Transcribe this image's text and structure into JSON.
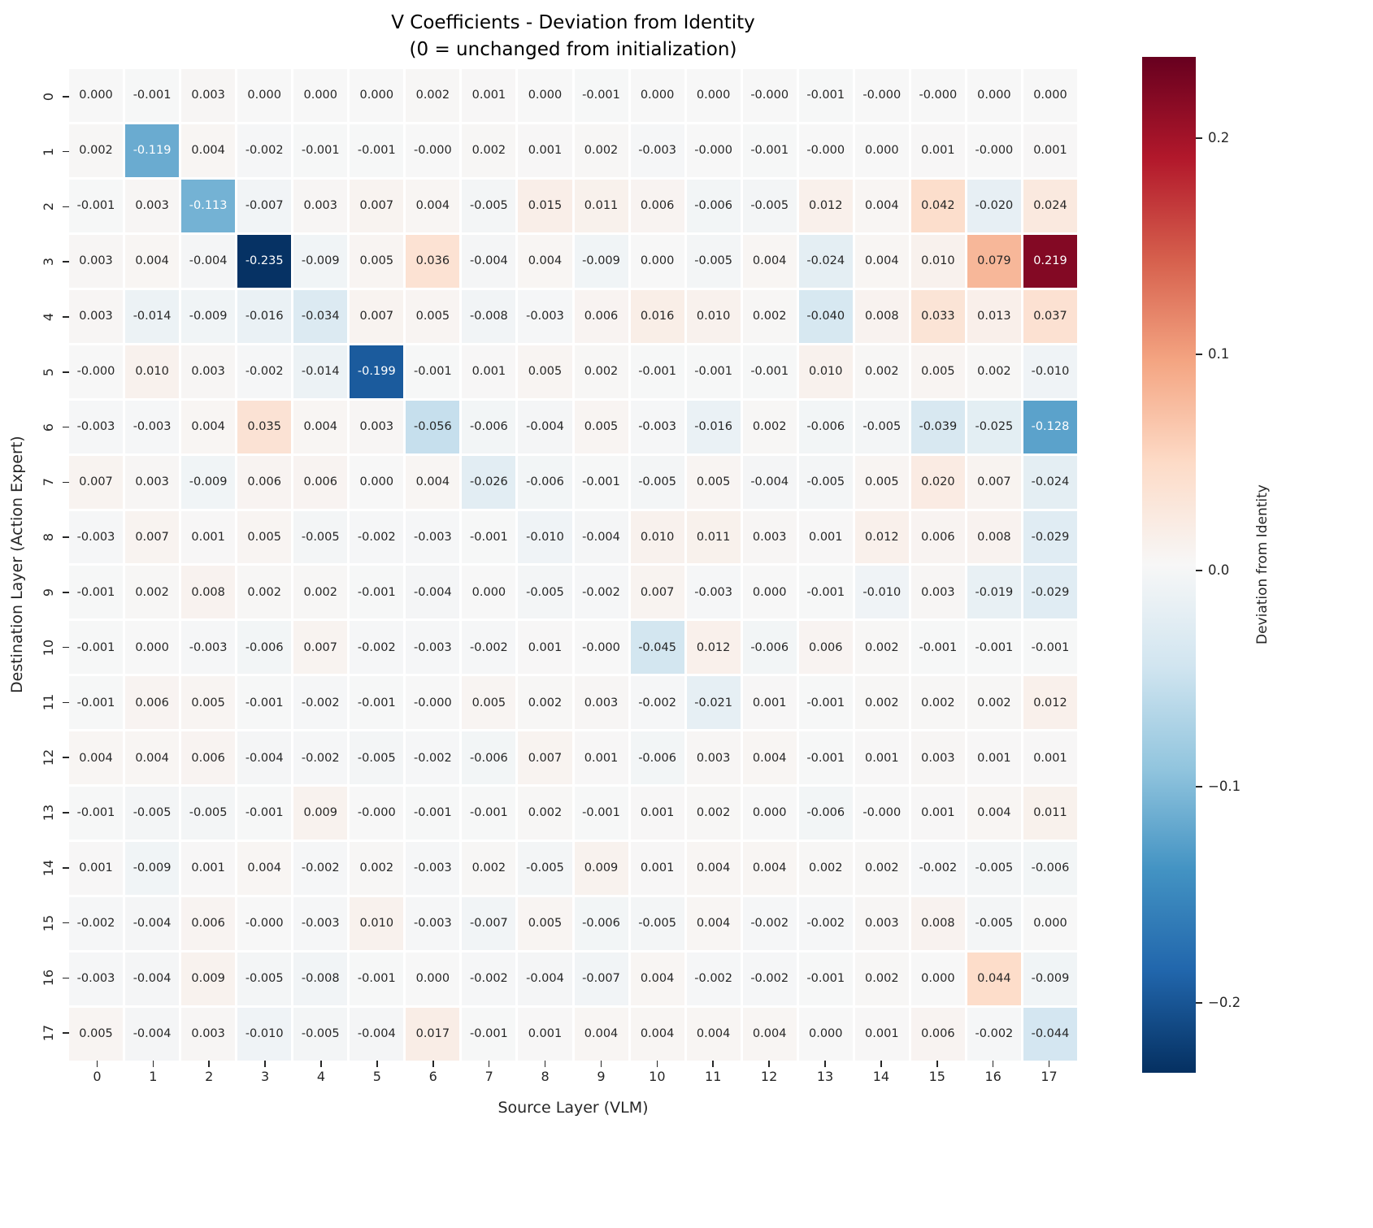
{
  "title": "V Coefficients - Deviation from Identity\n(0 = unchanged from initialization)",
  "axes": {
    "x_label": "Source Layer (VLM)",
    "y_label": "Destination Layer (Action Expert)"
  },
  "colorbar": {
    "label": "Deviation from Identity",
    "tick_labels": [
      "0.2",
      "0.1",
      "0.0",
      "−0.1",
      "−0.2"
    ],
    "tick_values": [
      0.2,
      0.1,
      0.0,
      -0.1,
      -0.2
    ],
    "top_color": "#67001f",
    "bottom_color": "#053061"
  },
  "chart_data": {
    "type": "heatmap",
    "title": "V Coefficients - Deviation from Identity (0 = unchanged from initialization)",
    "xlabel": "Source Layer (VLM)",
    "ylabel": "Destination Layer (Action Expert)",
    "x_labels": [
      "0",
      "1",
      "2",
      "3",
      "4",
      "5",
      "6",
      "7",
      "8",
      "9",
      "10",
      "11",
      "12",
      "13",
      "14",
      "15",
      "16",
      "17"
    ],
    "y_labels": [
      "0",
      "1",
      "2",
      "3",
      "4",
      "5",
      "6",
      "7",
      "8",
      "9",
      "10",
      "11",
      "12",
      "13",
      "14",
      "15",
      "16",
      "17"
    ],
    "colormap": "RdBu_r (blue = negative, red = positive)",
    "annotated": true,
    "grid": false,
    "legend_position": "right colorbar",
    "color_scale_limits": [
      -0.237,
      0.237
    ],
    "values": [
      [
        "0.000",
        "-0.001",
        "0.003",
        "0.000",
        "0.000",
        "0.000",
        "0.002",
        "0.001",
        "0.000",
        "-0.001",
        "0.000",
        "0.000",
        "-0.000",
        "-0.001",
        "-0.000",
        "-0.000",
        "0.000",
        "0.000"
      ],
      [
        "0.002",
        "-0.119",
        "0.004",
        "-0.002",
        "-0.001",
        "-0.001",
        "-0.000",
        "0.002",
        "0.001",
        "0.002",
        "-0.003",
        "-0.000",
        "-0.001",
        "-0.000",
        "0.000",
        "0.001",
        "-0.000",
        "0.001"
      ],
      [
        "-0.001",
        "0.003",
        "-0.113",
        "-0.007",
        "0.003",
        "0.007",
        "0.004",
        "-0.005",
        "0.015",
        "0.011",
        "0.006",
        "-0.006",
        "-0.005",
        "0.012",
        "0.004",
        "0.042",
        "-0.020",
        "0.024"
      ],
      [
        "0.003",
        "0.004",
        "-0.004",
        "-0.235",
        "-0.009",
        "0.005",
        "0.036",
        "-0.004",
        "0.004",
        "-0.009",
        "0.000",
        "-0.005",
        "0.004",
        "-0.024",
        "0.004",
        "0.010",
        "0.079",
        "0.219"
      ],
      [
        "0.003",
        "-0.014",
        "-0.009",
        "-0.016",
        "-0.034",
        "0.007",
        "0.005",
        "-0.008",
        "-0.003",
        "0.006",
        "0.016",
        "0.010",
        "0.002",
        "-0.040",
        "0.008",
        "0.033",
        "0.013",
        "0.037"
      ],
      [
        "-0.000",
        "0.010",
        "0.003",
        "-0.002",
        "-0.014",
        "-0.199",
        "-0.001",
        "0.001",
        "0.005",
        "0.002",
        "-0.001",
        "-0.001",
        "-0.001",
        "0.010",
        "0.002",
        "0.005",
        "0.002",
        "-0.010"
      ],
      [
        "-0.003",
        "-0.003",
        "0.004",
        "0.035",
        "0.004",
        "0.003",
        "-0.056",
        "-0.006",
        "-0.004",
        "0.005",
        "-0.003",
        "-0.016",
        "0.002",
        "-0.006",
        "-0.005",
        "-0.039",
        "-0.025",
        "-0.128"
      ],
      [
        "0.007",
        "0.003",
        "-0.009",
        "0.006",
        "0.006",
        "0.000",
        "0.004",
        "-0.026",
        "-0.006",
        "-0.001",
        "-0.005",
        "0.005",
        "-0.004",
        "-0.005",
        "0.005",
        "0.020",
        "0.007",
        "-0.024"
      ],
      [
        "-0.003",
        "0.007",
        "0.001",
        "0.005",
        "-0.005",
        "-0.002",
        "-0.003",
        "-0.001",
        "-0.010",
        "-0.004",
        "0.010",
        "0.011",
        "0.003",
        "0.001",
        "0.012",
        "0.006",
        "0.008",
        "-0.029"
      ],
      [
        "-0.001",
        "0.002",
        "0.008",
        "0.002",
        "0.002",
        "-0.001",
        "-0.004",
        "0.000",
        "-0.005",
        "-0.002",
        "0.007",
        "-0.003",
        "0.000",
        "-0.001",
        "-0.010",
        "0.003",
        "-0.019",
        "-0.029"
      ],
      [
        "-0.001",
        "0.000",
        "-0.003",
        "-0.006",
        "0.007",
        "-0.002",
        "-0.003",
        "-0.002",
        "0.001",
        "-0.000",
        "-0.045",
        "0.012",
        "-0.006",
        "0.006",
        "0.002",
        "-0.001",
        "-0.001",
        "-0.001"
      ],
      [
        "-0.001",
        "0.006",
        "0.005",
        "-0.001",
        "-0.002",
        "-0.001",
        "-0.000",
        "0.005",
        "0.002",
        "0.003",
        "-0.002",
        "-0.021",
        "0.001",
        "-0.001",
        "0.002",
        "0.002",
        "0.002",
        "0.012"
      ],
      [
        "0.004",
        "0.004",
        "0.006",
        "-0.004",
        "-0.002",
        "-0.005",
        "-0.002",
        "-0.006",
        "0.007",
        "0.001",
        "-0.006",
        "0.003",
        "0.004",
        "-0.001",
        "0.001",
        "0.003",
        "0.001",
        "0.001"
      ],
      [
        "-0.001",
        "-0.005",
        "-0.005",
        "-0.001",
        "0.009",
        "-0.000",
        "-0.001",
        "-0.001",
        "0.002",
        "-0.001",
        "0.001",
        "0.002",
        "0.000",
        "-0.006",
        "-0.000",
        "0.001",
        "0.004",
        "0.011"
      ],
      [
        "0.001",
        "-0.009",
        "0.001",
        "0.004",
        "-0.002",
        "0.002",
        "-0.003",
        "0.002",
        "-0.005",
        "0.009",
        "0.001",
        "0.004",
        "0.004",
        "0.002",
        "0.002",
        "-0.002",
        "-0.005",
        "-0.006"
      ],
      [
        "-0.002",
        "-0.004",
        "0.006",
        "-0.000",
        "-0.003",
        "0.010",
        "-0.003",
        "-0.007",
        "0.005",
        "-0.006",
        "-0.005",
        "0.004",
        "-0.002",
        "-0.002",
        "0.003",
        "0.008",
        "-0.005",
        "0.000"
      ],
      [
        "-0.003",
        "-0.004",
        "0.009",
        "-0.005",
        "-0.008",
        "-0.001",
        "0.000",
        "-0.002",
        "-0.004",
        "-0.007",
        "0.004",
        "-0.002",
        "-0.002",
        "-0.001",
        "0.002",
        "0.000",
        "0.044",
        "-0.009"
      ],
      [
        "0.005",
        "-0.004",
        "0.003",
        "-0.010",
        "-0.005",
        "-0.004",
        "0.017",
        "-0.001",
        "0.001",
        "0.004",
        "0.004",
        "0.004",
        "0.004",
        "0.000",
        "0.001",
        "0.006",
        "-0.002",
        "-0.044"
      ]
    ]
  }
}
